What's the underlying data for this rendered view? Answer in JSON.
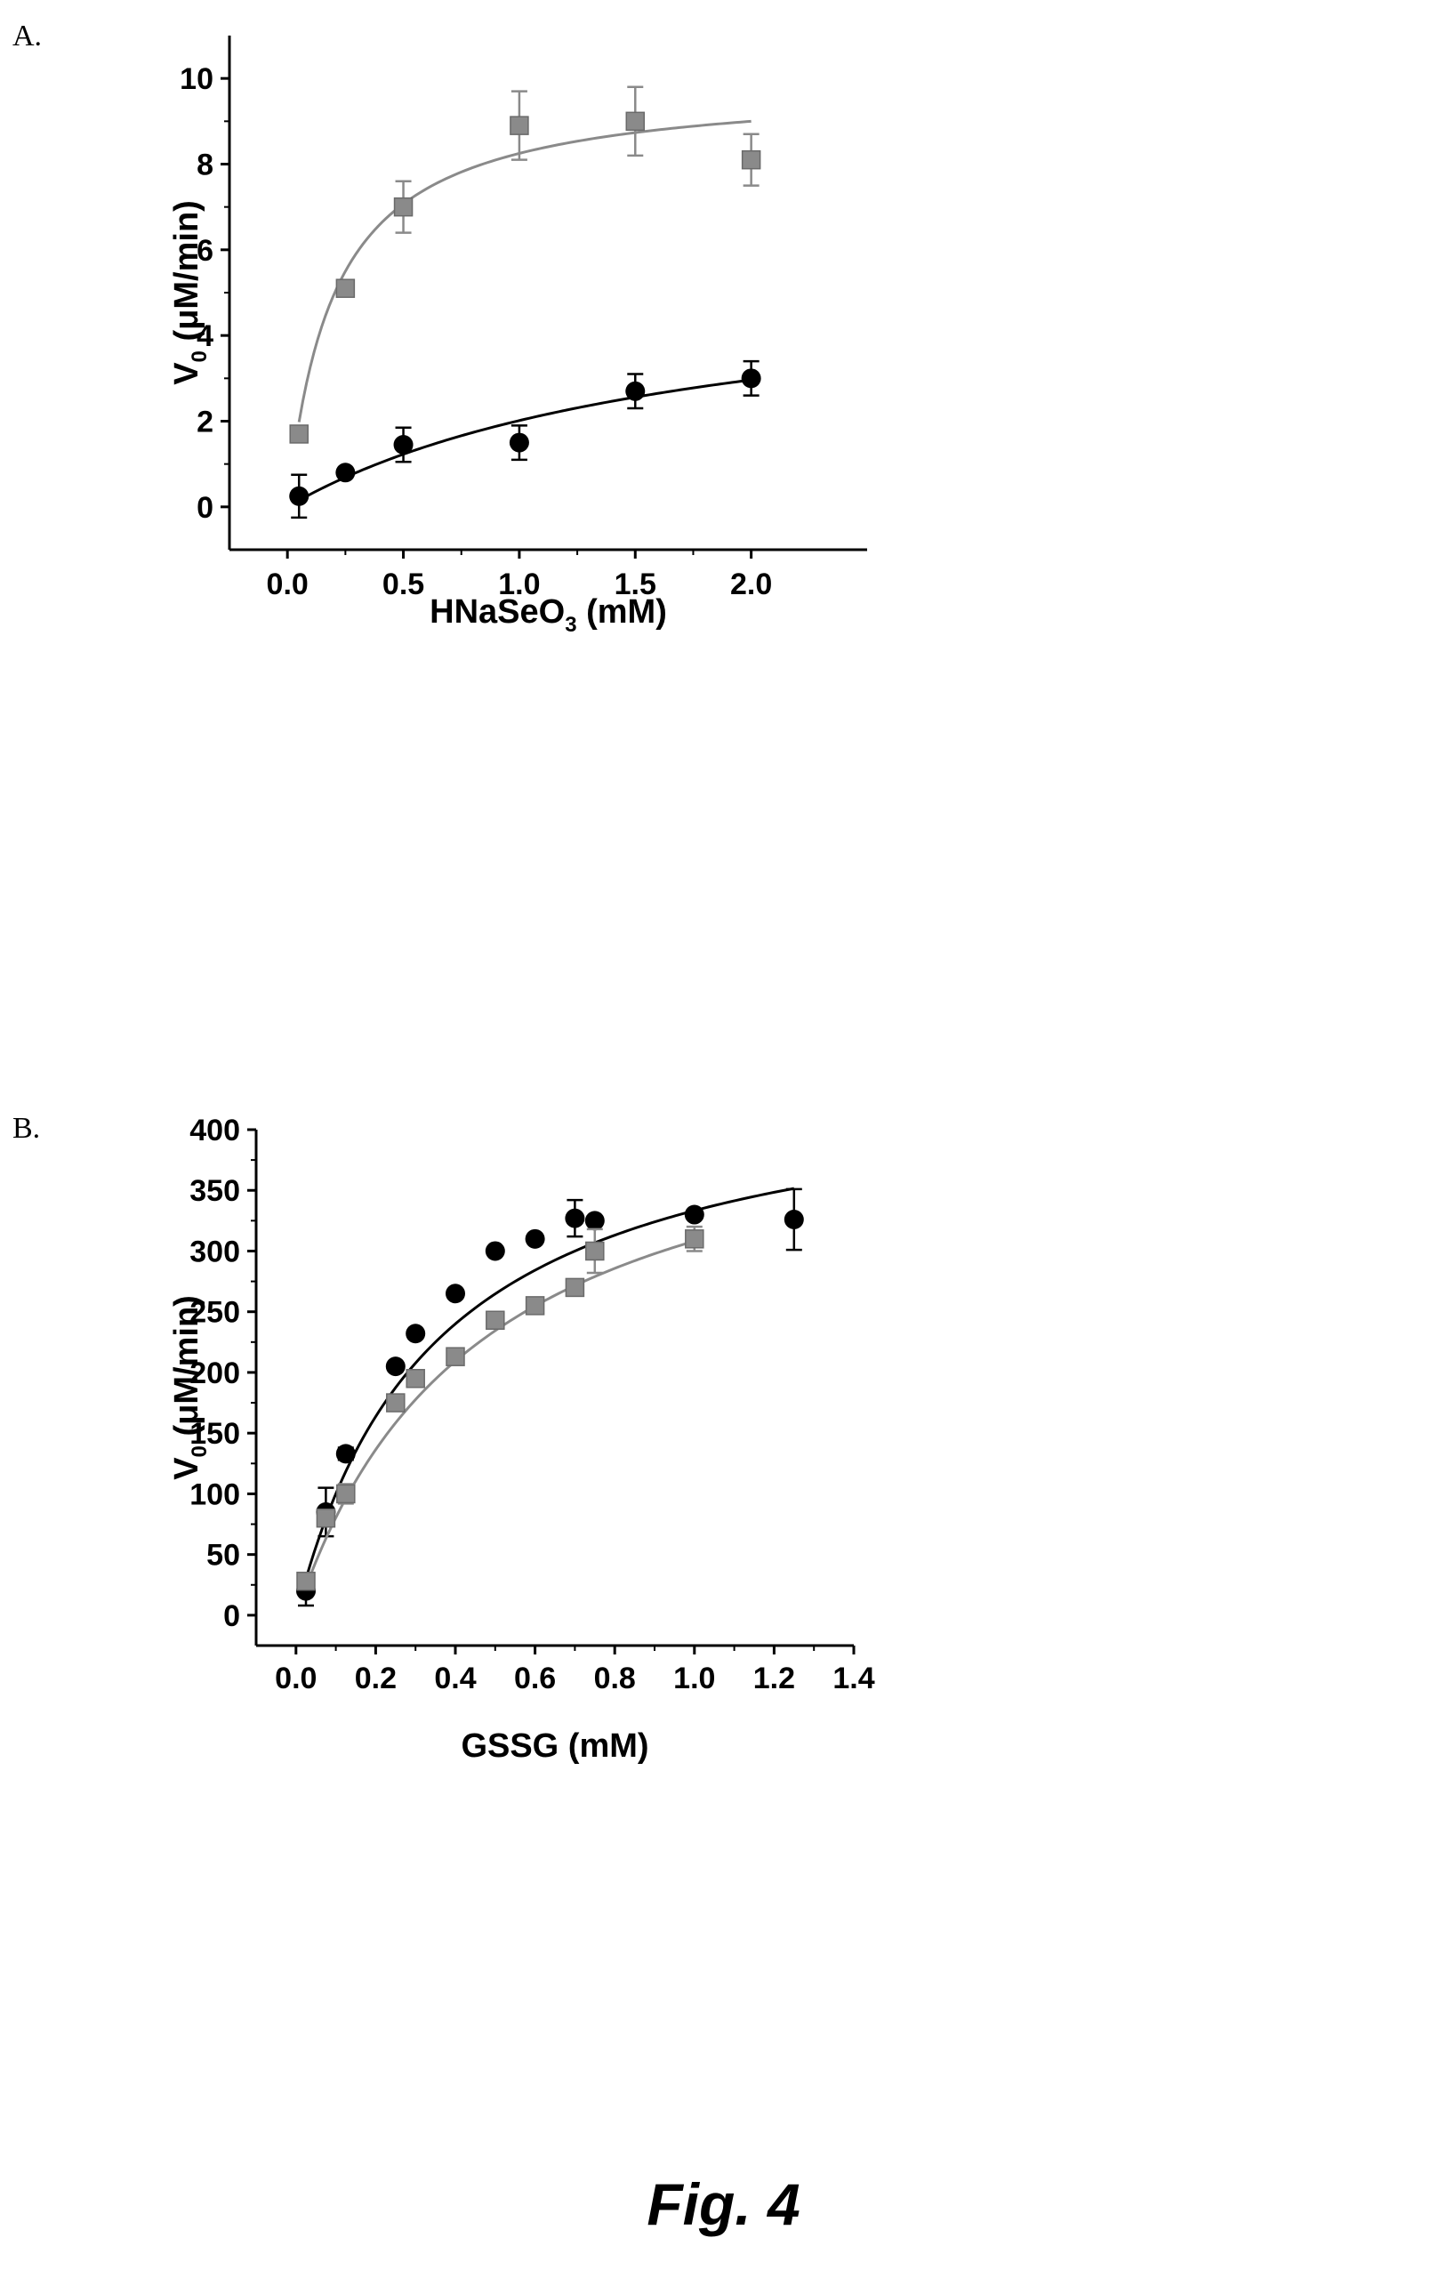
{
  "panels": {
    "a_label": "A.",
    "b_label": "B."
  },
  "caption": "Fig. 4",
  "chart_data": [
    {
      "type": "scatter",
      "panel": "A.",
      "xlabel": "HNaSeO₃ (mM)",
      "xlabel_main": "HNaSeO",
      "xlabel_sub": "3",
      "xlabel_rest": " (mM)",
      "ylabel_main": "V",
      "ylabel_sub": "0",
      "ylabel_rest": " (μM/min)",
      "xlim": [
        -0.25,
        2.5
      ],
      "ylim": [
        -1,
        11
      ],
      "xticks": [
        0.0,
        0.5,
        1.0,
        1.5,
        2.0
      ],
      "xtick_labels": [
        "0.0",
        "0.5",
        "1.0",
        "1.5",
        "2.0"
      ],
      "yticks": [
        0,
        2,
        4,
        6,
        8,
        10
      ],
      "ytick_labels": [
        "0",
        "2",
        "4",
        "6",
        "8",
        "10"
      ],
      "grid": false,
      "series": [
        {
          "marker": "square",
          "color": "#8a8a8a",
          "x": [
            0.05,
            0.25,
            0.5,
            1.0,
            1.5,
            2.0
          ],
          "y": [
            1.7,
            5.1,
            7.0,
            8.9,
            9.0,
            8.1
          ],
          "error": [
            0.0,
            0.1,
            0.6,
            0.8,
            0.8,
            0.6
          ],
          "fit": {
            "vmax": 9.9,
            "km": 0.2,
            "color": "#8a8a8a"
          }
        },
        {
          "marker": "circle",
          "color": "#000000",
          "x": [
            0.05,
            0.25,
            0.5,
            1.0,
            1.5,
            2.0
          ],
          "y": [
            0.25,
            0.8,
            1.45,
            1.5,
            2.7,
            3.0
          ],
          "error": [
            0.5,
            0.05,
            0.4,
            0.4,
            0.4,
            0.4
          ],
          "fit": {
            "vmax": 5.6,
            "km": 1.78,
            "color": "#000000"
          }
        }
      ]
    },
    {
      "type": "scatter",
      "panel": "B.",
      "xlabel": "GSSG (mM)",
      "xlabel_main": "GSSG (mM)",
      "xlabel_sub": "",
      "xlabel_rest": "",
      "ylabel_main": "V",
      "ylabel_sub": "0",
      "ylabel_rest": " (μM/min)",
      "xlim": [
        -0.1,
        1.4
      ],
      "ylim": [
        -25,
        400
      ],
      "xticks": [
        0.0,
        0.2,
        0.4,
        0.6,
        0.8,
        1.0,
        1.2,
        1.4
      ],
      "xtick_labels": [
        "0.0",
        "0.2",
        "0.4",
        "0.6",
        "0.8",
        "1.0",
        "1.2",
        "1.4"
      ],
      "yticks": [
        0,
        50,
        100,
        150,
        200,
        250,
        300,
        350,
        400
      ],
      "ytick_labels": [
        "0",
        "50",
        "100",
        "150",
        "200",
        "250",
        "300",
        "350",
        "400"
      ],
      "grid": false,
      "series": [
        {
          "marker": "circle",
          "color": "#000000",
          "x": [
            0.025,
            0.075,
            0.125,
            0.25,
            0.3,
            0.4,
            0.5,
            0.6,
            0.7,
            0.75,
            1.0,
            1.25
          ],
          "y": [
            20,
            85,
            133,
            205,
            232,
            265,
            300,
            310,
            327,
            325,
            330,
            326
          ],
          "error": [
            12,
            20,
            5,
            3,
            3,
            3,
            3,
            3,
            15,
            3,
            3,
            25
          ],
          "fit": {
            "vmax": 450,
            "km": 0.35,
            "color": "#000000"
          }
        },
        {
          "marker": "square",
          "color": "#8a8a8a",
          "x": [
            0.025,
            0.075,
            0.125,
            0.25,
            0.3,
            0.4,
            0.5,
            0.6,
            0.7,
            0.75,
            1.0
          ],
          "y": [
            28,
            80,
            100,
            175,
            195,
            213,
            243,
            255,
            270,
            300,
            310
          ],
          "error": [
            5,
            5,
            8,
            3,
            5,
            3,
            3,
            3,
            6,
            18,
            10
          ],
          "fit": {
            "vmax": 450,
            "km": 0.46,
            "color": "#8a8a8a"
          }
        }
      ]
    }
  ]
}
